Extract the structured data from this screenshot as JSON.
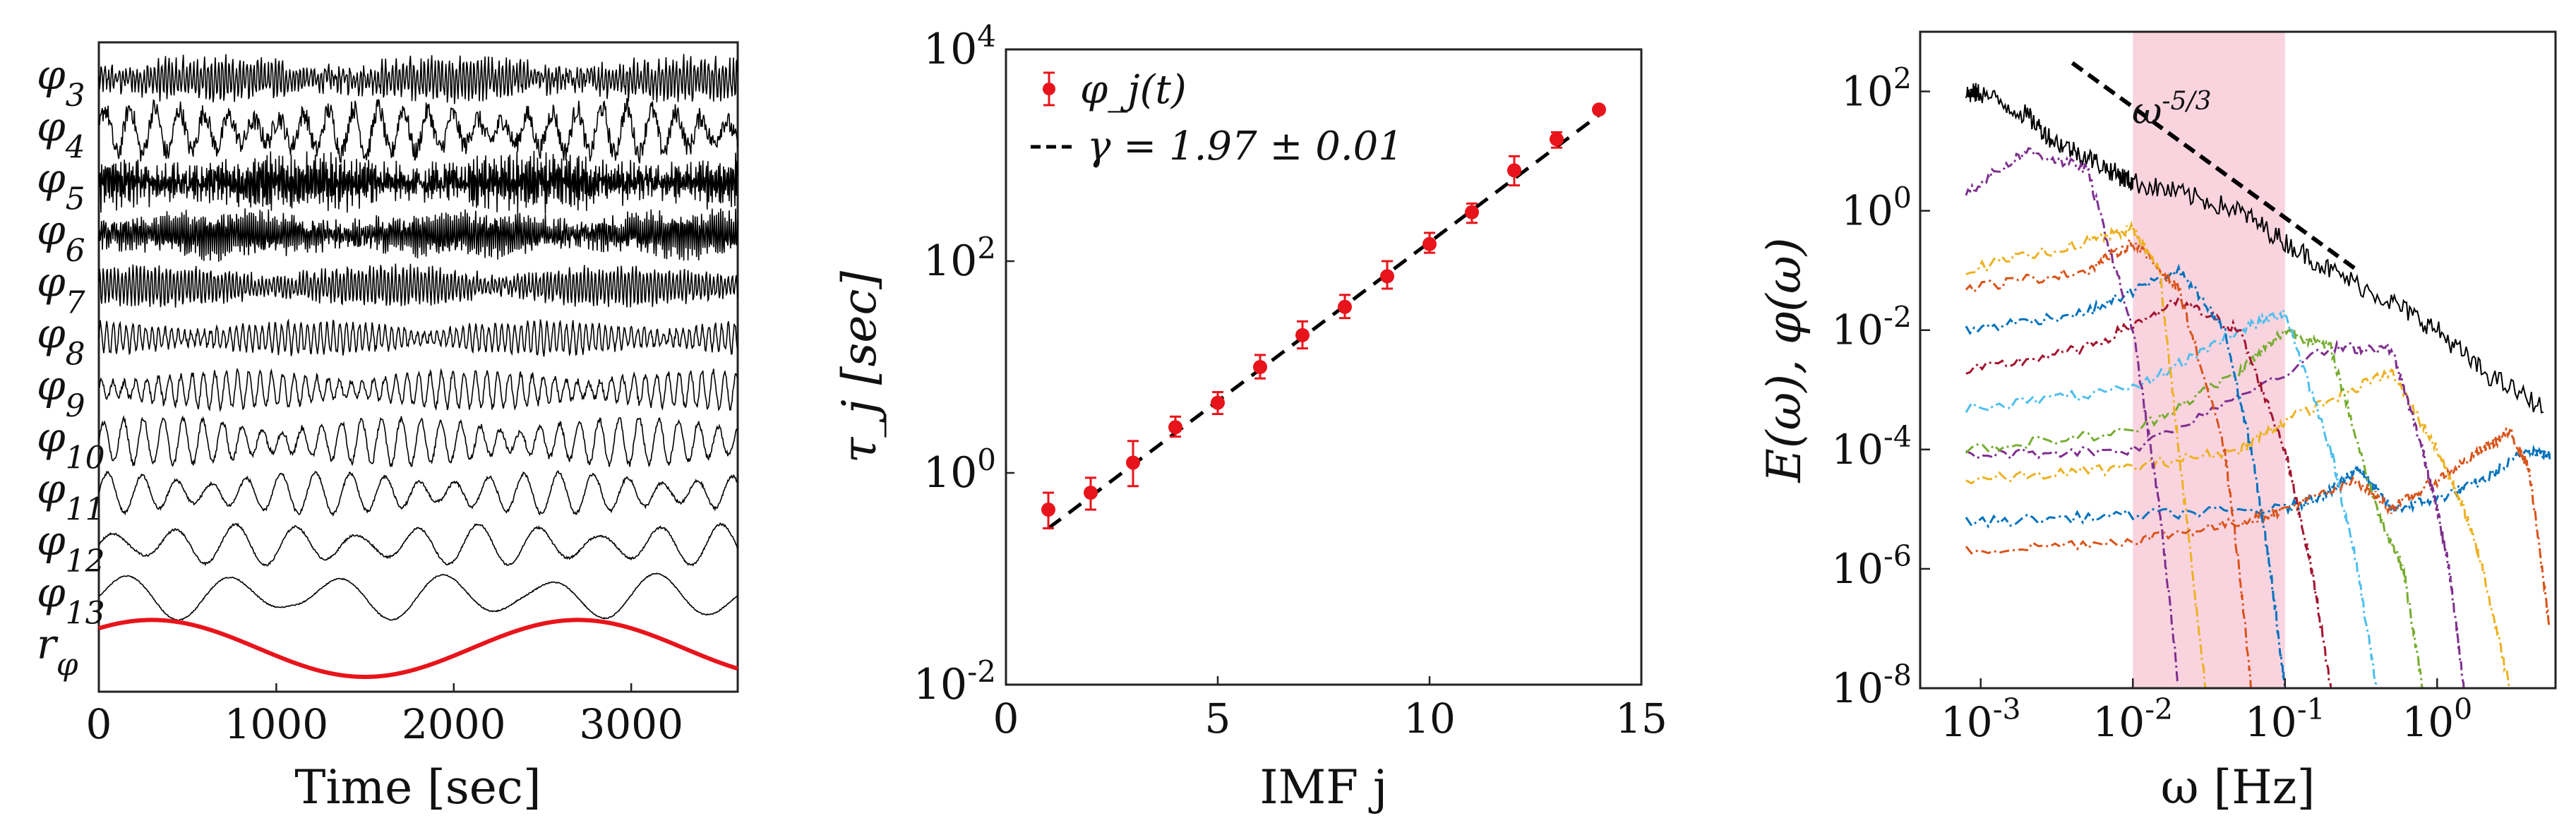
{
  "chart_data": [
    {
      "type": "line",
      "xlabel": "Time [sec]",
      "xlim": [
        0,
        3600
      ],
      "xticks": [
        0,
        1000,
        2000,
        3000
      ],
      "rows": [
        {
          "label": "φ",
          "sub": "3",
          "amp": 0.35,
          "noise": 0.9,
          "color": "#000000"
        },
        {
          "label": "φ",
          "sub": "4",
          "amp": 0.45,
          "noise": 0.9,
          "color": "#000000"
        },
        {
          "label": "φ",
          "sub": "5",
          "amp": 0.45,
          "noise": 0.85,
          "color": "#000000"
        },
        {
          "label": "φ",
          "sub": "6",
          "amp": 0.4,
          "noise": 0.7,
          "color": "#000000"
        },
        {
          "label": "φ",
          "sub": "7",
          "amp": 0.35,
          "noise": 0.55,
          "color": "#000000"
        },
        {
          "label": "φ",
          "sub": "8",
          "amp": 0.3,
          "noise": 0.45,
          "color": "#000000"
        },
        {
          "label": "φ",
          "sub": "9",
          "amp": 0.35,
          "noise": 0.35,
          "color": "#000000"
        },
        {
          "label": "φ",
          "sub": "10",
          "amp": 0.45,
          "noise": 0.25,
          "color": "#000000"
        },
        {
          "label": "φ",
          "sub": "11",
          "amp": 0.4,
          "noise": 0.15,
          "color": "#000000"
        },
        {
          "label": "φ",
          "sub": "12",
          "amp": 0.4,
          "noise": 0.1,
          "color": "#000000"
        },
        {
          "label": "φ",
          "sub": "13",
          "amp": 0.45,
          "noise": 0.05,
          "color": "#000000"
        },
        {
          "label": "r",
          "sub": "φ",
          "amp": 0.55,
          "noise": 0.0,
          "color": "#e8141b"
        }
      ]
    },
    {
      "type": "scatter",
      "xlabel": "IMF j",
      "ylabel": "τ_j [sec]",
      "xlim": [
        0,
        15
      ],
      "ylim": [
        0.01,
        10000
      ],
      "yscale": "log",
      "xticks": [
        0,
        5,
        10,
        15
      ],
      "yticks": [
        "10^{-2}",
        "10^{0}",
        "10^{2}",
        "10^{4}"
      ],
      "legend": {
        "position": "top-left",
        "series": "φ_j(t)",
        "fit": "γ = 1.97 ± 0.01"
      },
      "series": [
        {
          "name": "φ_j(t)",
          "color": "#e8141b",
          "x": [
            1,
            2,
            3,
            4,
            5,
            6,
            7,
            8,
            9,
            10,
            11,
            12,
            13,
            14
          ],
          "y": [
            0.45,
            0.65,
            1.25,
            2.7,
            4.6,
            10,
            20,
            37,
            72,
            145,
            290,
            720,
            1420,
            2700
          ],
          "err_low": [
            0.3,
            0.45,
            0.75,
            2.2,
            3.6,
            7.8,
            15,
            29,
            55,
            120,
            230,
            520,
            1180,
            2500
          ],
          "err_high": [
            0.65,
            0.9,
            2.0,
            3.4,
            5.8,
            13,
            27,
            48,
            100,
            185,
            350,
            980,
            1650,
            2900
          ]
        },
        {
          "name": "fit",
          "style": "dashed",
          "color": "#000000",
          "x": [
            1,
            14
          ],
          "y": [
            0.3,
            2400
          ]
        }
      ]
    },
    {
      "type": "line",
      "xlabel": "ω [Hz]",
      "ylabel": "E(ω), φ(ω)",
      "xscale": "log",
      "yscale": "log",
      "xlim": [
        0.0004,
        6
      ],
      "ylim": [
        1e-08,
        1000
      ],
      "xticks": [
        "10^{-3}",
        "10^{-2}",
        "10^{-1}",
        "10^{0}"
      ],
      "yticks": [
        "10^{-8}",
        "10^{-6}",
        "10^{-4}",
        "10^{-2}",
        "10^{0}",
        "10^{2}"
      ],
      "shaded_band": {
        "x": [
          0.01,
          0.1
        ],
        "color": "#f9d4df"
      },
      "slope_label": "ω^{-5/3}",
      "slope_line": {
        "x": [
          0.004,
          0.3
        ],
        "y": [
          300,
          0.1
        ]
      },
      "series": [
        {
          "name": "E",
          "color": "#000000",
          "x": [
            0.0008,
            0.001,
            0.002,
            0.003,
            0.005,
            0.008,
            0.01,
            0.02,
            0.05,
            0.1,
            0.2,
            0.5,
            1,
            2,
            5
          ],
          "y": [
            90,
            95,
            40,
            15,
            8,
            4,
            3,
            2,
            1,
            0.3,
            0.1,
            0.03,
            0.01,
            0.002,
            0.0005
          ]
        },
        {
          "name": "φ3",
          "color": "#0072bd",
          "x": [
            0.0008,
            0.01,
            0.1,
            0.2,
            0.3,
            0.5,
            1,
            2,
            4,
            5.5
          ],
          "y": [
            6e-06,
            8e-06,
            1e-05,
            2e-05,
            5e-05,
            1e-05,
            1.5e-05,
            3e-05,
            0.0001,
            8e-05
          ]
        },
        {
          "name": "φ4",
          "color": "#d95319",
          "x": [
            0.0008,
            0.01,
            0.05,
            0.1,
            0.3,
            0.5,
            1,
            2,
            3,
            4,
            5.5
          ],
          "y": [
            2e-06,
            3e-06,
            6e-06,
            1e-05,
            3e-05,
            1e-05,
            3e-05,
            0.0001,
            0.0002,
            5e-05,
            1e-07
          ]
        },
        {
          "name": "φ5",
          "color": "#edb120",
          "x": [
            0.0008,
            0.01,
            0.05,
            0.1,
            0.5,
            1,
            1.5,
            2,
            3
          ],
          "y": [
            3e-05,
            5e-05,
            0.0001,
            0.0003,
            0.002,
            0.0001,
            1e-05,
            1e-06,
            1e-08
          ]
        },
        {
          "name": "φ6",
          "color": "#7e2f8e",
          "x": [
            0.0008,
            0.01,
            0.2,
            0.5,
            0.8,
            1,
            1.2,
            1.5
          ],
          "y": [
            8e-05,
            0.0001,
            0.005,
            0.005,
            0.0001,
            1e-05,
            1e-06,
            1e-08
          ]
        },
        {
          "name": "φ7",
          "color": "#77ac30",
          "x": [
            0.0008,
            0.01,
            0.05,
            0.1,
            0.2,
            0.4,
            0.6,
            0.8
          ],
          "y": [
            0.0001,
            0.0002,
            0.002,
            0.01,
            0.005,
            1e-05,
            1e-06,
            1e-08
          ]
        },
        {
          "name": "φ8",
          "color": "#4dbeee",
          "x": [
            0.0008,
            0.01,
            0.05,
            0.1,
            0.2,
            0.3,
            0.4
          ],
          "y": [
            0.0005,
            0.001,
            0.01,
            0.02,
            0.0001,
            1e-06,
            1e-08
          ]
        },
        {
          "name": "φ9",
          "color": "#a2142f",
          "x": [
            0.0008,
            0.005,
            0.02,
            0.05,
            0.1,
            0.15,
            0.2
          ],
          "y": [
            0.002,
            0.005,
            0.03,
            0.01,
            0.0001,
            1e-06,
            1e-08
          ]
        },
        {
          "name": "φ10",
          "color": "#0072bd",
          "x": [
            0.0008,
            0.005,
            0.02,
            0.04,
            0.06,
            0.08,
            0.1
          ],
          "y": [
            0.01,
            0.02,
            0.1,
            0.01,
            0.0001,
            1e-06,
            1e-08
          ]
        },
        {
          "name": "φ11",
          "color": "#d95319",
          "x": [
            0.0008,
            0.005,
            0.01,
            0.02,
            0.04,
            0.05,
            0.06
          ],
          "y": [
            0.05,
            0.1,
            0.3,
            0.05,
            0.0001,
            1e-06,
            1e-08
          ]
        },
        {
          "name": "φ12",
          "color": "#edb120",
          "x": [
            0.0008,
            0.005,
            0.01,
            0.015,
            0.02,
            0.03
          ],
          "y": [
            0.1,
            0.3,
            0.5,
            0.1,
            0.0001,
            1e-08
          ]
        },
        {
          "name": "φ13",
          "color": "#7e2f8e",
          "x": [
            0.0008,
            0.002,
            0.005,
            0.01,
            0.015,
            0.02
          ],
          "y": [
            2,
            10,
            5,
            0.01,
            1e-05,
            1e-08
          ]
        }
      ]
    }
  ]
}
